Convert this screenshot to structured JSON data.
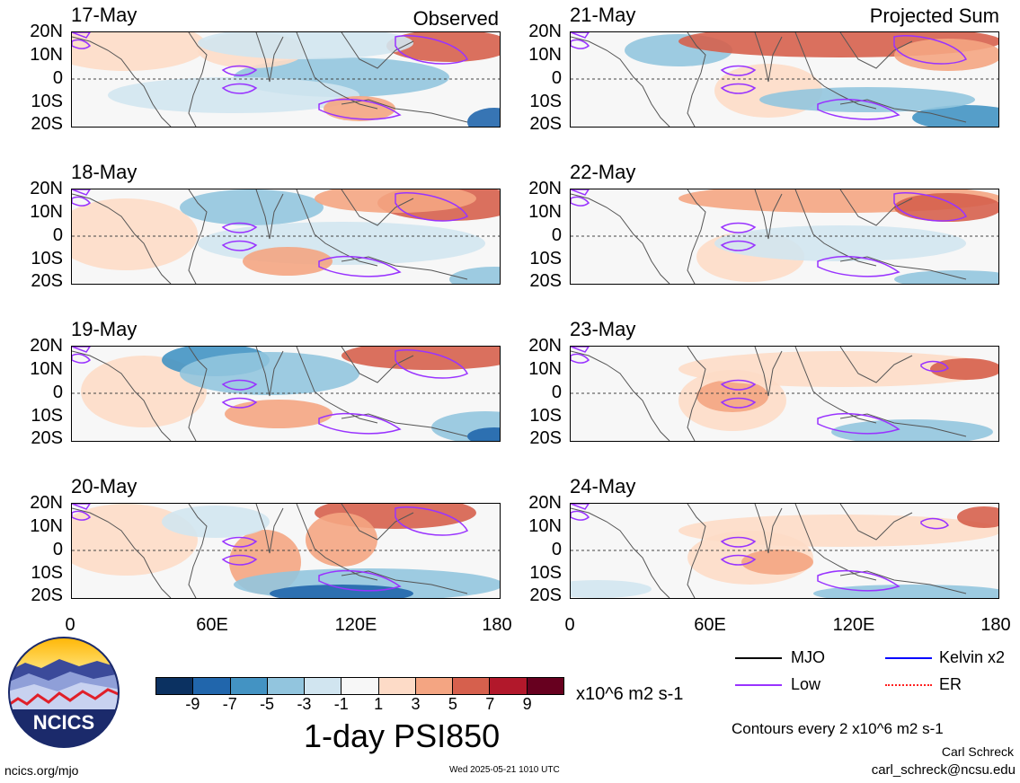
{
  "columns": {
    "left_title": "Observed",
    "right_title": "Projected Sum"
  },
  "panels_left": [
    {
      "date": "17-May"
    },
    {
      "date": "18-May"
    },
    {
      "date": "19-May"
    },
    {
      "date": "20-May"
    }
  ],
  "panels_right": [
    {
      "date": "21-May"
    },
    {
      "date": "22-May"
    },
    {
      "date": "23-May"
    },
    {
      "date": "24-May"
    }
  ],
  "lat_labels": [
    "20N",
    "10N",
    "0",
    "10S",
    "20S"
  ],
  "lon_labels": [
    "0",
    "60E",
    "120E",
    "180"
  ],
  "colorbar": {
    "ticks": [
      "-9",
      "-7",
      "-5",
      "-3",
      "-1",
      "1",
      "3",
      "5",
      "7",
      "9"
    ],
    "units": "x10^6 m2 s-1",
    "colors": [
      "#0b3161",
      "#2166ac",
      "#4393c3",
      "#92c5de",
      "#d1e5f0",
      "#f7f7f7",
      "#fddbc7",
      "#f4a582",
      "#d6604d",
      "#b2182b",
      "#67001f"
    ]
  },
  "title": "1-day PSI850",
  "legend": {
    "items": [
      {
        "label": "MJO",
        "color": "#000000"
      },
      {
        "label": "Kelvin x2",
        "color": "#0000ff"
      },
      {
        "label": "Low",
        "color": "#9933ff"
      },
      {
        "label": "ER",
        "color": "#ff2020"
      }
    ],
    "contours_note": "Contours every 2 x10^6 m2 s-1"
  },
  "credits": {
    "logo_text": "NCICS",
    "website": "ncics.org/mjo",
    "timestamp": "Wed 2025-05-21 1010 UTC",
    "author": "Carl Schreck",
    "email": "carl_schreck@ncsu.edu"
  }
}
